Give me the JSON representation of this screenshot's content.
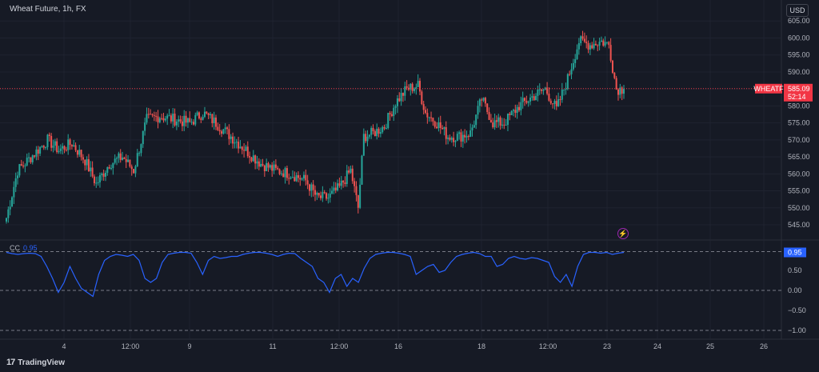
{
  "header": {
    "symbol_title": "Wheat Future, 1h, FX",
    "currency_button": "USD"
  },
  "price_tag": {
    "symbol": "WHEATF",
    "price": "585.09",
    "countdown": "52:14"
  },
  "indicator": {
    "name": "CC",
    "value": "0.95",
    "value_tag": "0.95"
  },
  "footer": {
    "brand": "TradingView",
    "brand_logo": "17"
  },
  "icons": {
    "flash": "lightning-icon"
  },
  "colors": {
    "background": "#161a25",
    "up": "#26a69a",
    "down": "#ef5350",
    "indicator": "#2962ff",
    "price_line": "#f23645"
  },
  "chart_data": [
    {
      "type": "candlestick",
      "title": "Wheat Future, 1h, FX",
      "x_tick_labels": [
        "4",
        "12:00",
        "9",
        "11",
        "12:00",
        "16",
        "18",
        "12:00",
        "23",
        "24",
        "25",
        "26"
      ],
      "y_tick_labels": [
        "545.00",
        "550.00",
        "555.00",
        "560.00",
        "565.00",
        "570.00",
        "575.00",
        "580.00",
        "585.00",
        "590.00",
        "595.00",
        "600.00",
        "605.00"
      ],
      "ylim": [
        541,
        606
      ],
      "last_price": 585.09,
      "anchors": [
        [
          0,
          547
        ],
        [
          6,
          561
        ],
        [
          15,
          566
        ],
        [
          22,
          570
        ],
        [
          28,
          567
        ],
        [
          35,
          569
        ],
        [
          42,
          564
        ],
        [
          48,
          557
        ],
        [
          55,
          563
        ],
        [
          62,
          565
        ],
        [
          68,
          561
        ],
        [
          75,
          576
        ],
        [
          82,
          577
        ],
        [
          90,
          576
        ],
        [
          98,
          575
        ],
        [
          105,
          578
        ],
        [
          112,
          575
        ],
        [
          120,
          571
        ],
        [
          128,
          567
        ],
        [
          136,
          563
        ],
        [
          144,
          561
        ],
        [
          152,
          560
        ],
        [
          160,
          558
        ],
        [
          166,
          553
        ],
        [
          172,
          553
        ],
        [
          178,
          556
        ],
        [
          184,
          561
        ],
        [
          188,
          550
        ],
        [
          191,
          571
        ],
        [
          196,
          572
        ],
        [
          202,
          574
        ],
        [
          208,
          581
        ],
        [
          214,
          585
        ],
        [
          220,
          586
        ],
        [
          224,
          578
        ],
        [
          230,
          575
        ],
        [
          236,
          571
        ],
        [
          242,
          571
        ],
        [
          248,
          572
        ],
        [
          254,
          582
        ],
        [
          260,
          575
        ],
        [
          266,
          575
        ],
        [
          274,
          580
        ],
        [
          282,
          583
        ],
        [
          288,
          585
        ],
        [
          294,
          579
        ],
        [
          300,
          588
        ],
        [
          306,
          599
        ],
        [
          312,
          598
        ],
        [
          318,
          599
        ],
        [
          322,
          598
        ],
        [
          326,
          585
        ],
        [
          330,
          585
        ]
      ]
    },
    {
      "type": "line",
      "name": "CC",
      "y_tick_labels": [
        "-1.00",
        "-0.50",
        "0.00",
        "0.50",
        "0.95"
      ],
      "ylim": [
        -1.0,
        1.0
      ],
      "last_value": 0.95,
      "values": [
        0.95,
        0.92,
        0.9,
        0.92,
        0.93,
        0.92,
        0.85,
        0.6,
        0.3,
        -0.05,
        0.2,
        0.6,
        0.3,
        0.05,
        -0.05,
        -0.15,
        0.4,
        0.75,
        0.85,
        0.9,
        0.88,
        0.85,
        0.9,
        0.75,
        0.3,
        0.2,
        0.3,
        0.7,
        0.9,
        0.93,
        0.95,
        0.95,
        0.93,
        0.7,
        0.4,
        0.75,
        0.85,
        0.8,
        0.82,
        0.85,
        0.85,
        0.9,
        0.93,
        0.95,
        0.95,
        0.93,
        0.9,
        0.85,
        0.9,
        0.93,
        0.92,
        0.8,
        0.7,
        0.6,
        0.3,
        0.2,
        -0.05,
        0.3,
        0.4,
        0.1,
        0.3,
        0.2,
        0.55,
        0.8,
        0.9,
        0.93,
        0.95,
        0.95,
        0.93,
        0.9,
        0.85,
        0.4,
        0.5,
        0.6,
        0.65,
        0.45,
        0.5,
        0.7,
        0.85,
        0.9,
        0.93,
        0.95,
        0.92,
        0.85,
        0.85,
        0.6,
        0.65,
        0.8,
        0.85,
        0.8,
        0.78,
        0.82,
        0.8,
        0.75,
        0.7,
        0.35,
        0.2,
        0.4,
        0.1,
        0.6,
        0.9,
        0.95,
        0.95,
        0.93,
        0.95,
        0.9,
        0.93,
        0.95
      ]
    }
  ]
}
